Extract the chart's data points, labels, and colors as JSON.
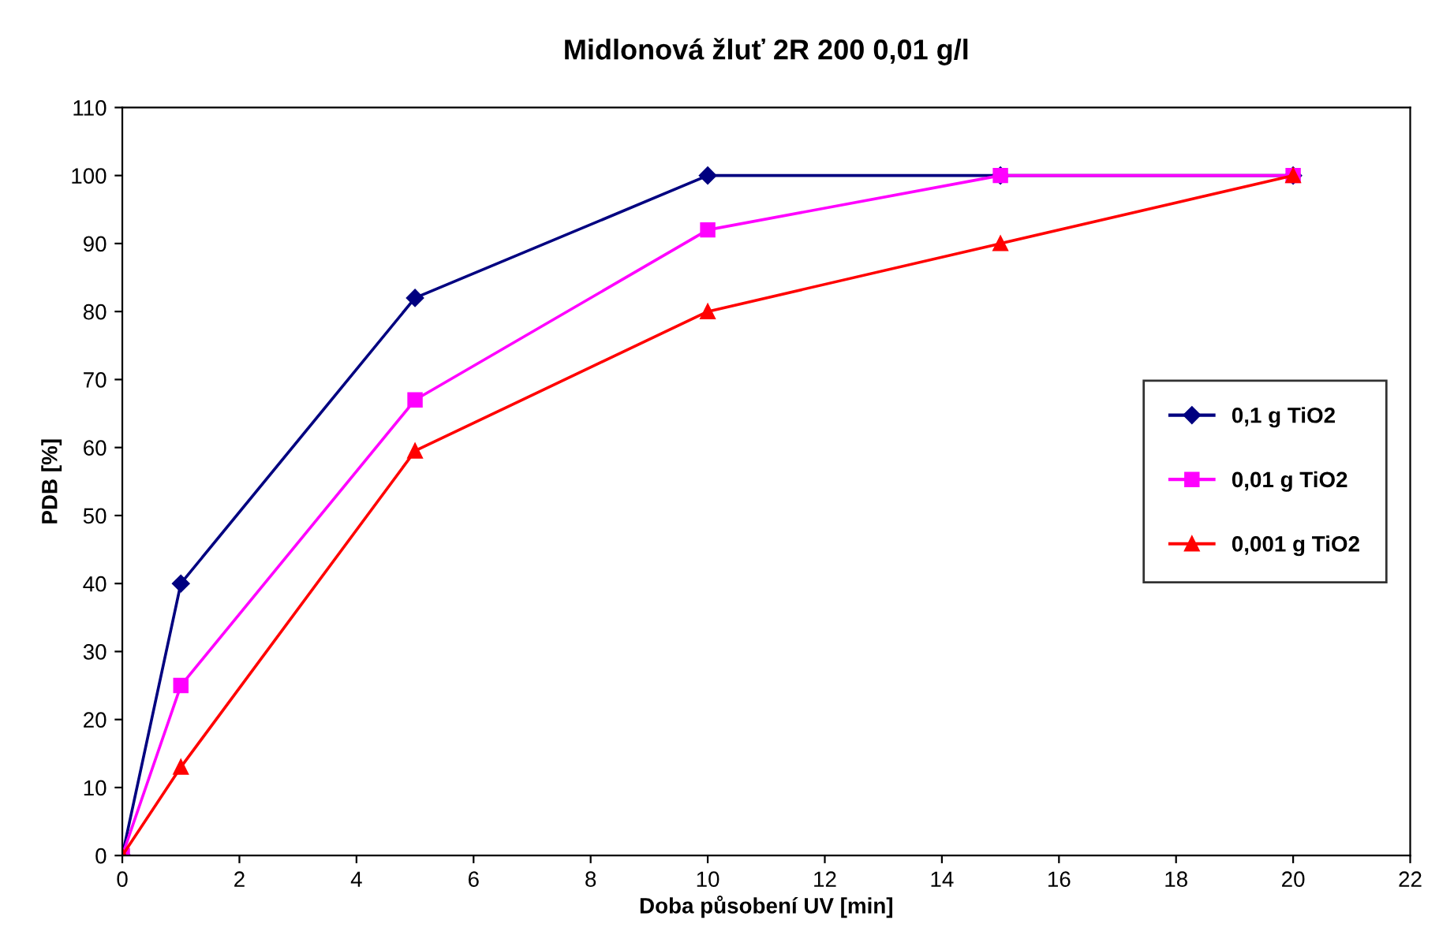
{
  "chart_data": {
    "type": "line",
    "title": "Midlonová žluť 2R 200 0,01 g/l",
    "xlabel": "Doba působení UV [min]",
    "ylabel": "PDB [%]",
    "x": [
      0,
      1,
      5,
      10,
      15,
      20
    ],
    "series": [
      {
        "name": "0,1 g TiO2",
        "color": "#000080",
        "marker": "diamond",
        "values": [
          0,
          40,
          82,
          100,
          100,
          100
        ]
      },
      {
        "name": "0,01 g TiO2",
        "color": "#ff00ff",
        "marker": "square",
        "values": [
          0,
          25,
          67,
          92,
          100,
          100
        ]
      },
      {
        "name": "0,001 g TiO2",
        "color": "#ff0000",
        "marker": "triangle",
        "values": [
          0,
          13,
          59.5,
          80,
          90,
          100
        ]
      }
    ],
    "xlim": [
      0,
      22
    ],
    "xticks": [
      0,
      2,
      4,
      6,
      8,
      10,
      12,
      14,
      16,
      18,
      20,
      22
    ],
    "ylim": [
      0,
      110
    ],
    "yticks": [
      0,
      10,
      20,
      30,
      40,
      50,
      60,
      70,
      80,
      90,
      100,
      110
    ],
    "grid": false,
    "legend": "right",
    "line_style": "solid"
  }
}
